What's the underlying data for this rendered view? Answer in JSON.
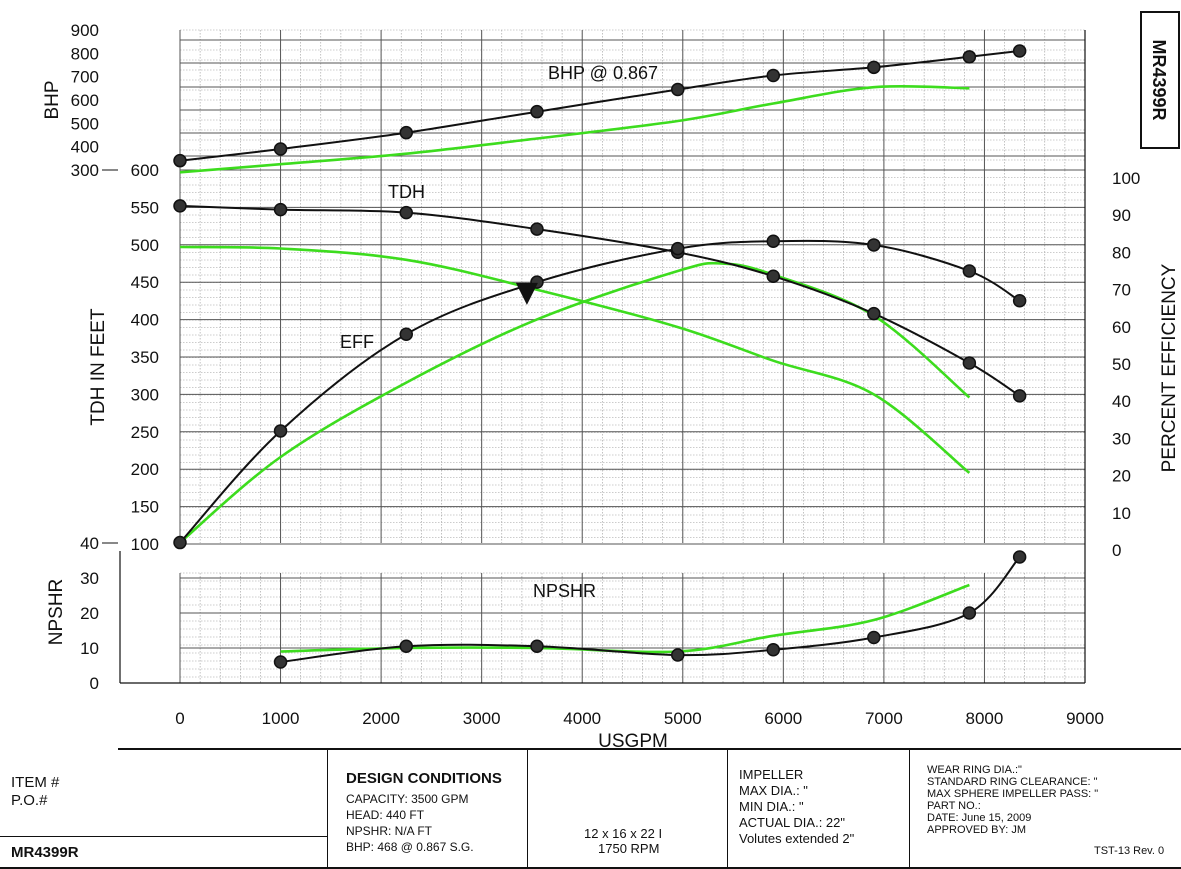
{
  "chart_data": [
    {
      "type": "line",
      "title": "BHP @ 0.867",
      "ylabel": "BHP",
      "x": [
        0,
        1000,
        2250,
        3550,
        4950,
        5900,
        6900,
        7850,
        8350
      ],
      "ylim": [
        300,
        900
      ],
      "y_ticks": [
        300,
        400,
        500,
        600,
        700,
        800,
        900
      ],
      "series": [
        {
          "color": "#111111",
          "marker": "circle",
          "x": [
            0,
            1000,
            2250,
            3550,
            4950,
            5900,
            6900,
            7850,
            8350
          ],
          "values": [
            340,
            390,
            460,
            550,
            645,
            705,
            740,
            785,
            810
          ]
        },
        {
          "color": "#3ddc1e",
          "x": [
            0,
            1000,
            2250,
            3550,
            4950,
            5900,
            6900,
            7850
          ],
          "values": [
            290,
            325,
            370,
            435,
            510,
            585,
            655,
            650
          ]
        }
      ]
    },
    {
      "type": "line",
      "xlabel": "USGPM",
      "ylabel": "TDH IN FEET",
      "y2label": "PERCENT EFFICIENCY",
      "xlim": [
        0,
        9000
      ],
      "x_ticks": [
        0,
        1000,
        2000,
        3000,
        4000,
        5000,
        6000,
        7000,
        8000,
        9000
      ],
      "ylim": [
        100,
        600
      ],
      "y_ticks": [
        100,
        150,
        200,
        250,
        300,
        350,
        400,
        450,
        500,
        550,
        600
      ],
      "y2lim": [
        0,
        100
      ],
      "y2_ticks": [
        0,
        10,
        20,
        30,
        40,
        50,
        60,
        70,
        80,
        90,
        100
      ],
      "annotations": [
        "TDH",
        "EFF"
      ],
      "series": [
        {
          "label": "TDH",
          "color": "#111111",
          "marker": "circle",
          "x": [
            0,
            1000,
            2250,
            3550,
            4950,
            5900,
            6900,
            7850,
            8350
          ],
          "values": [
            552,
            547,
            543,
            521,
            490,
            458,
            408,
            342,
            298
          ]
        },
        {
          "label": "EFF",
          "color": "#111111",
          "marker": "circle",
          "axis": "right",
          "x": [
            0,
            1000,
            2250,
            3550,
            4950,
            5900,
            6900,
            7850,
            8350
          ],
          "values": [
            2,
            32,
            58,
            72,
            81,
            83,
            82,
            75,
            67
          ]
        },
        {
          "color": "#3ddc1e",
          "x": [
            0,
            1000,
            2250,
            3550,
            4950,
            5900,
            6900,
            7850
          ],
          "values": [
            497,
            495,
            480,
            440,
            390,
            345,
            300,
            195
          ]
        },
        {
          "color": "#3ddc1e",
          "axis": "right",
          "x": [
            0,
            1000,
            2250,
            3550,
            4950,
            5400,
            5900,
            6900,
            7850
          ],
          "values": [
            2,
            25,
            45,
            62,
            75,
            77,
            74,
            63,
            41
          ]
        }
      ],
      "design_point": {
        "x": 3450,
        "y": 441
      }
    },
    {
      "type": "line",
      "ylabel": "NPSHR",
      "ylim": [
        0,
        40
      ],
      "y_ticks": [
        0,
        10,
        20,
        30,
        40
      ],
      "series": [
        {
          "label": "NPSHR",
          "color": "#111111",
          "marker": "circle",
          "x": [
            1000,
            2250,
            3550,
            4950,
            5900,
            6900,
            7850,
            8350
          ],
          "values": [
            6,
            10.5,
            10.5,
            8,
            9.5,
            13,
            20,
            36
          ]
        },
        {
          "color": "#3ddc1e",
          "x": [
            1000,
            2250,
            3550,
            4950,
            5900,
            6900,
            7850
          ],
          "values": [
            9,
            10,
            10,
            9,
            13.5,
            18,
            28
          ]
        }
      ]
    }
  ],
  "side_tag": "MR4399R",
  "info": {
    "item": "ITEM #",
    "po": "P.O.#",
    "model": "MR4399R",
    "design_title": "DESIGN CONDITIONS",
    "capacity": "CAPACITY: 3500 GPM",
    "head": "HEAD: 440 FT",
    "npshr": "NPSHR: N/A FT",
    "bhp": "BHP: 468 @ 0.867 S.G.",
    "size": "12 x 16 x 22 I",
    "rpm": "1750 RPM",
    "impeller": "IMPELLER",
    "max_dia": "MAX DIA.: \"",
    "min_dia": "MIN DIA.: \"",
    "actual_dia": "ACTUAL DIA.: 22\"",
    "volutes": "Volutes extended 2\"",
    "wear_ring": "WEAR RING DIA.:\"",
    "ring_clearance": "STANDARD RING CLEARANCE: \"",
    "sphere": "MAX SPHERE IMPELLER PASS: \"",
    "part_no": "PART NO.:",
    "date": "DATE: June 15, 2009",
    "approved": "APPROVED BY: JM",
    "rev": "TST-13 Rev. 0"
  }
}
